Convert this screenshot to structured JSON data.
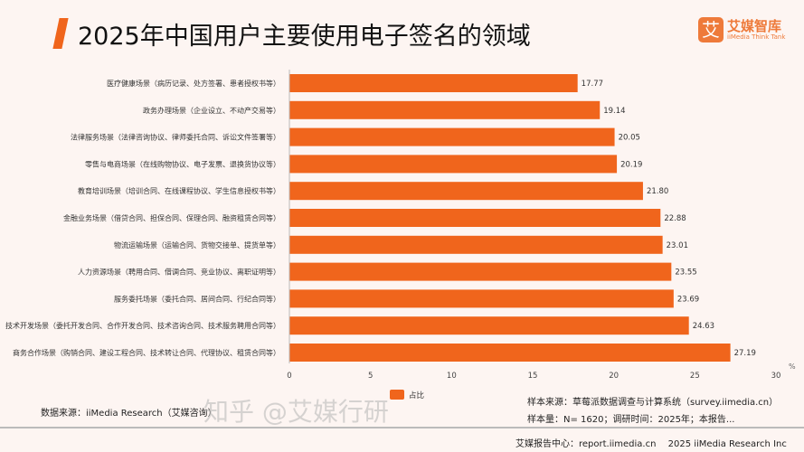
{
  "header": {
    "title": "2025年中国用户主要使用电子签名的领域",
    "logo_cn": "艾媒智库",
    "logo_en": "iiMedia Think Tank",
    "logo_glyph": "艾"
  },
  "chart_data": {
    "type": "bar",
    "orientation": "horizontal",
    "categories": [
      "医疗健康场景（病历记录、处方签署、患者授权书等）",
      "政务办理场景（企业设立、不动产交易等）",
      "法律服务场景（法律咨询协议、律师委托合同、诉讼文件签署等）",
      "零售与电商场景（在线购物协议、电子发票、退换货协议等）",
      "教育培训场景（培训合同、在线课程协议、学生信息授权书等）",
      "金融业务场景（借贷合同、担保合同、保理合同、融资租赁合同等）",
      "物流运输场景（运输合同、货物交接单、提货单等）",
      "人力资源场景（聘用合同、借调合同、竞业协议、离职证明等）",
      "服务委托场景（委托合同、居间合同、行纪合同等）",
      "技术开发场景（委托开发合同、合作开发合同、技术咨询合同、技术服务聘用合同等）",
      "商务合作场景（购销合同、建设工程合同、技术转让合同、代理协议、租赁合同等）"
    ],
    "series": [
      {
        "name": "占比",
        "values": [
          17.77,
          19.14,
          20.05,
          20.19,
          21.8,
          22.88,
          23.01,
          23.55,
          23.69,
          24.63,
          27.19
        ],
        "color": "#f0651c"
      }
    ],
    "xlim": [
      0,
      30
    ],
    "xticks": [
      0,
      5,
      10,
      15,
      20,
      25,
      30
    ],
    "unit": "%",
    "legend": "bottom-left",
    "grid": false
  },
  "footer": {
    "data_source": "数据来源：iiMedia Research（艾媒咨询）",
    "sample_source": "样本来源：草莓派数据调查与计算系统（survey.iimedia.cn）",
    "sample_size": "样本量：N= 1620；调研时间：2025年；本报告...",
    "report_center": "艾媒报告中心：report.iimedia.cn　 2025 iiMedia Research Inc",
    "watermark": "知乎 @艾媒行研"
  }
}
